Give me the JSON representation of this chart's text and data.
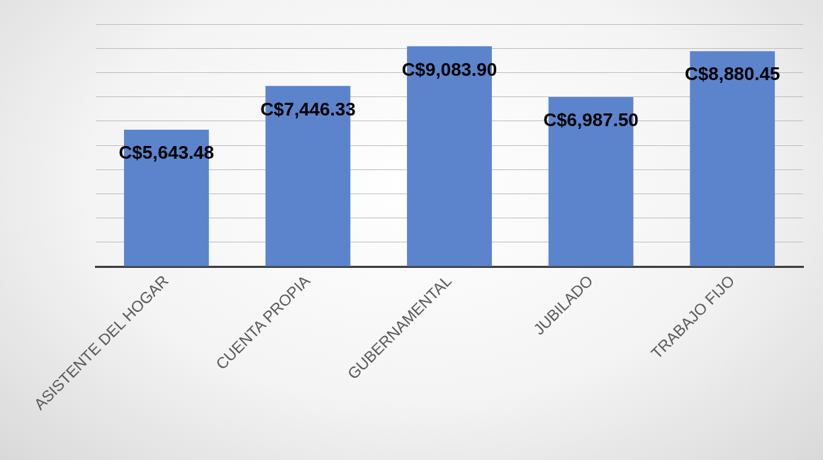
{
  "chart_data": {
    "type": "bar",
    "categories": [
      "ASISTENTE DEL HOGAR",
      "CUENTA PROPIA",
      "GUBERNAMENTAL",
      "JUBILADO",
      "TRABAJO FIJO"
    ],
    "values": [
      5643.48,
      7446.33,
      9083.9,
      6987.5,
      8880.45
    ],
    "value_labels": [
      "C$5,643.48",
      "C$7,446.33",
      "C$9,083.90",
      "C$6,987.50",
      "C$8,880.45"
    ],
    "color": "#5b84cc",
    "ylim": [
      0,
      10000
    ],
    "yticks": [
      {
        "value": 0,
        "label": null
      },
      {
        "value": 1000,
        "label": null
      },
      {
        "value": 2000,
        "label": null
      },
      {
        "value": 3000,
        "label": null
      },
      {
        "value": 4000,
        "label": null
      },
      {
        "value": 5000,
        "label": null
      },
      {
        "value": 6000,
        "label": null
      },
      {
        "value": 7000,
        "label": null
      },
      {
        "value": 8000,
        "label": null
      },
      {
        "value": 9000,
        "label": null
      },
      {
        "value": 10000,
        "label": null
      }
    ],
    "grid": "y",
    "tick_labels": "x"
  }
}
